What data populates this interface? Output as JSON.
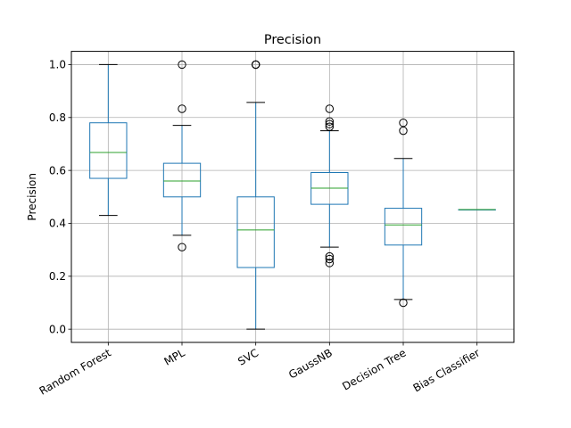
{
  "chart_data": {
    "type": "box",
    "title": "Precision",
    "xlabel": "",
    "ylabel": "Precision",
    "ylim": [
      -0.05,
      1.05
    ],
    "yticks": [
      0.0,
      0.2,
      0.4,
      0.6,
      0.8,
      1.0
    ],
    "ytick_labels": [
      "0.0",
      "0.2",
      "0.4",
      "0.6",
      "0.8",
      "1.0"
    ],
    "grid": true,
    "categories": [
      "Random Forest",
      "MPL",
      "SVC",
      "GaussNB",
      "Decision Tree",
      "Bias Classifier"
    ],
    "boxes": [
      {
        "whislo": 0.43,
        "q1": 0.57,
        "med": 0.668,
        "q3": 0.78,
        "whishi": 1.0,
        "fliers": []
      },
      {
        "whislo": 0.355,
        "q1": 0.5,
        "med": 0.56,
        "q3": 0.627,
        "whishi": 0.77,
        "fliers": [
          0.31,
          0.833,
          1.0
        ]
      },
      {
        "whislo": 0.0,
        "q1": 0.233,
        "med": 0.375,
        "q3": 0.5,
        "whishi": 0.857,
        "fliers": [
          1.0,
          1.0,
          1.0
        ]
      },
      {
        "whislo": 0.31,
        "q1": 0.472,
        "med": 0.533,
        "q3": 0.592,
        "whishi": 0.75,
        "fliers": [
          0.25,
          0.265,
          0.275,
          0.765,
          0.775,
          0.785,
          0.833
        ]
      },
      {
        "whislo": 0.112,
        "q1": 0.318,
        "med": 0.394,
        "q3": 0.457,
        "whishi": 0.645,
        "fliers": [
          0.1,
          0.75,
          0.78
        ]
      },
      {
        "whislo": 0.452,
        "q1": 0.452,
        "med": 0.452,
        "q3": 0.452,
        "whishi": 0.452,
        "fliers": []
      }
    ],
    "colors": {
      "box": "#1f77b4",
      "median": "#2ca02c",
      "whisker_cap": "#000000",
      "flier": "#000000",
      "grid": "#b0b0b0",
      "axes": "#000000"
    }
  }
}
